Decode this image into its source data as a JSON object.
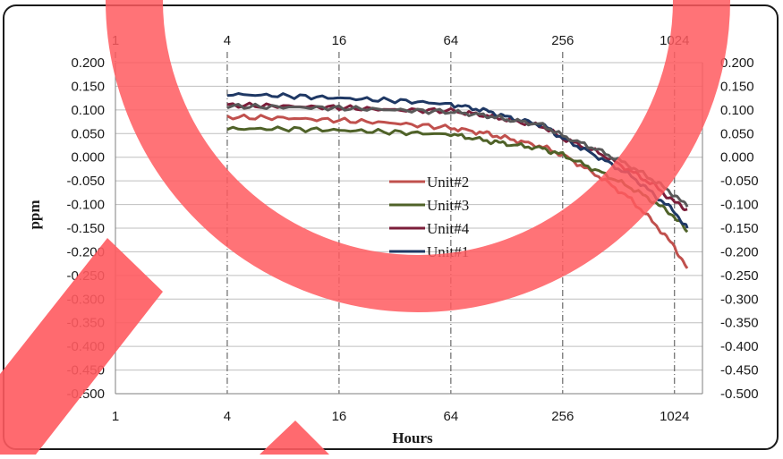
{
  "chart_data": {
    "type": "line",
    "xscale": "log2",
    "xlim": [
      1,
      1448
    ],
    "xticks": [
      1,
      4,
      16,
      64,
      256,
      1024
    ],
    "xtick_labels": [
      "1",
      "4",
      "16",
      "64",
      "256",
      "1024"
    ],
    "ylim": [
      -0.5,
      0.2
    ],
    "yticks": [
      0.2,
      0.15,
      0.1,
      0.05,
      0.0,
      -0.05,
      -0.1,
      -0.15,
      -0.2,
      -0.25,
      -0.3,
      -0.35,
      -0.4,
      -0.45,
      -0.5
    ],
    "ytick_labels": [
      "0.200",
      "0.150",
      "0.100",
      "0.050",
      "0.000",
      "-0.050",
      "-0.100",
      "-0.150",
      "-0.200",
      "-0.250",
      "-0.300",
      "-0.350",
      "-0.400",
      "-0.450",
      "-0.500"
    ],
    "xlabel": "Hours",
    "ylabel": "ppm",
    "grid": true,
    "legend_position": "center",
    "series": [
      {
        "name": "Unit#2",
        "color": "#c0504d",
        "x": [
          4,
          8,
          16,
          32,
          64,
          100,
          128,
          200,
          256,
          400,
          600,
          800,
          1024,
          1200
        ],
        "y": [
          0.085,
          0.083,
          0.078,
          0.072,
          0.062,
          0.05,
          0.04,
          0.022,
          0.005,
          -0.04,
          -0.09,
          -0.14,
          -0.19,
          -0.235
        ]
      },
      {
        "name": "Unit#3",
        "color": "#4f6228",
        "x": [
          4,
          8,
          16,
          32,
          64,
          100,
          128,
          200,
          256,
          400,
          600,
          800,
          1024,
          1200
        ],
        "y": [
          0.06,
          0.06,
          0.057,
          0.053,
          0.048,
          0.035,
          0.028,
          0.018,
          0.005,
          -0.03,
          -0.065,
          -0.095,
          -0.125,
          -0.158
        ]
      },
      {
        "name": "Unit#4",
        "color": "#7b1e3a",
        "x": [
          4,
          8,
          16,
          32,
          64,
          100,
          128,
          200,
          256,
          400,
          600,
          800,
          1024,
          1200
        ],
        "y": [
          0.11,
          0.108,
          0.105,
          0.1,
          0.098,
          0.088,
          0.08,
          0.065,
          0.04,
          0.01,
          -0.03,
          -0.06,
          -0.095,
          -0.11
        ]
      },
      {
        "name": "Unit#1",
        "color": "#1f3864",
        "x": [
          4,
          8,
          16,
          32,
          64,
          100,
          128,
          200,
          256,
          400,
          600,
          800,
          1024,
          1200
        ],
        "y": [
          0.133,
          0.13,
          0.125,
          0.12,
          0.112,
          0.098,
          0.085,
          0.068,
          0.04,
          0.0,
          -0.04,
          -0.08,
          -0.115,
          -0.15
        ]
      },
      {
        "name": "",
        "color": "#595959",
        "x": [
          4,
          8,
          16,
          32,
          64,
          100,
          128,
          200,
          256,
          400,
          600,
          800,
          1024,
          1200
        ],
        "y": [
          0.108,
          0.106,
          0.104,
          0.1,
          0.096,
          0.088,
          0.08,
          0.068,
          0.045,
          0.015,
          -0.02,
          -0.05,
          -0.08,
          -0.105
        ]
      }
    ],
    "legend": [
      "Unit#2",
      "Unit#3",
      "Unit#4",
      "Unit#1"
    ]
  },
  "colors": {
    "overlay": "#ff5a5f",
    "grid": "#bfbfbf",
    "axis": "#7f7f7f"
  }
}
